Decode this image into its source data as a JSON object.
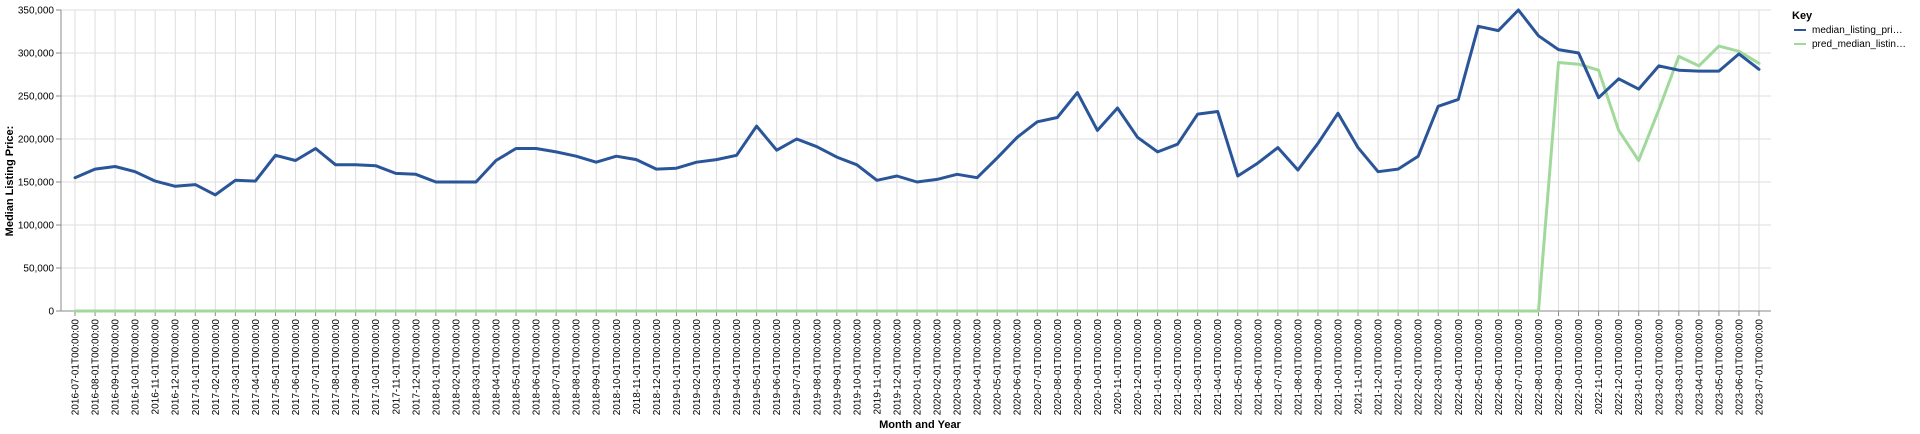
{
  "chart_data": {
    "type": "line",
    "xlabel": "Month and Year",
    "ylabel": "Median Listing Price:",
    "ylim": [
      0,
      350000
    ],
    "yticks": [
      "0",
      "50,000",
      "100,000",
      "150,000",
      "200,000",
      "250,000",
      "300,000",
      "350,000"
    ],
    "grid": true,
    "legend_placement": "right",
    "legend_title": "Key",
    "x": [
      "2016-07-01T00:00:00",
      "2016-08-01T00:00:00",
      "2016-09-01T00:00:00",
      "2016-10-01T00:00:00",
      "2016-11-01T00:00:00",
      "2016-12-01T00:00:00",
      "2017-01-01T00:00:00",
      "2017-02-01T00:00:00",
      "2017-03-01T00:00:00",
      "2017-04-01T00:00:00",
      "2017-05-01T00:00:00",
      "2017-06-01T00:00:00",
      "2017-07-01T00:00:00",
      "2017-08-01T00:00:00",
      "2017-09-01T00:00:00",
      "2017-10-01T00:00:00",
      "2017-11-01T00:00:00",
      "2017-12-01T00:00:00",
      "2018-01-01T00:00:00",
      "2018-02-01T00:00:00",
      "2018-03-01T00:00:00",
      "2018-04-01T00:00:00",
      "2018-05-01T00:00:00",
      "2018-06-01T00:00:00",
      "2018-07-01T00:00:00",
      "2018-08-01T00:00:00",
      "2018-09-01T00:00:00",
      "2018-10-01T00:00:00",
      "2018-11-01T00:00:00",
      "2018-12-01T00:00:00",
      "2019-01-01T00:00:00",
      "2019-02-01T00:00:00",
      "2019-03-01T00:00:00",
      "2019-04-01T00:00:00",
      "2019-05-01T00:00:00",
      "2019-06-01T00:00:00",
      "2019-07-01T00:00:00",
      "2019-08-01T00:00:00",
      "2019-09-01T00:00:00",
      "2019-10-01T00:00:00",
      "2019-11-01T00:00:00",
      "2019-12-01T00:00:00",
      "2020-01-01T00:00:00",
      "2020-02-01T00:00:00",
      "2020-03-01T00:00:00",
      "2020-04-01T00:00:00",
      "2020-05-01T00:00:00",
      "2020-06-01T00:00:00",
      "2020-07-01T00:00:00",
      "2020-08-01T00:00:00",
      "2020-09-01T00:00:00",
      "2020-10-01T00:00:00",
      "2020-11-01T00:00:00",
      "2020-12-01T00:00:00",
      "2021-01-01T00:00:00",
      "2021-02-01T00:00:00",
      "2021-03-01T00:00:00",
      "2021-04-01T00:00:00",
      "2021-05-01T00:00:00",
      "2021-06-01T00:00:00",
      "2021-07-01T00:00:00",
      "2021-08-01T00:00:00",
      "2021-09-01T00:00:00",
      "2021-10-01T00:00:00",
      "2021-11-01T00:00:00",
      "2021-12-01T00:00:00",
      "2022-01-01T00:00:00",
      "2022-02-01T00:00:00",
      "2022-03-01T00:00:00",
      "2022-04-01T00:00:00",
      "2022-05-01T00:00:00",
      "2022-06-01T00:00:00",
      "2022-07-01T00:00:00",
      "2022-08-01T00:00:00",
      "2022-09-01T00:00:00",
      "2022-10-01T00:00:00",
      "2022-11-01T00:00:00",
      "2022-12-01T00:00:00",
      "2023-01-01T00:00:00",
      "2023-02-01T00:00:00",
      "2023-03-01T00:00:00",
      "2023-04-01T00:00:00",
      "2023-05-01T00:00:00",
      "2023-06-01T00:00:00",
      "2023-07-01T00:00:00"
    ],
    "series": [
      {
        "name": "median_listing_pri…",
        "color": "#2a5599",
        "values": [
          155000,
          165000,
          168000,
          162000,
          151000,
          145000,
          147000,
          135000,
          152000,
          151000,
          181000,
          175000,
          189000,
          170000,
          170000,
          169000,
          160000,
          159000,
          150000,
          150000,
          150000,
          175000,
          189000,
          189000,
          185000,
          180000,
          173000,
          180000,
          176000,
          165000,
          166000,
          173000,
          176000,
          181000,
          215000,
          187000,
          200000,
          191000,
          179000,
          170000,
          152000,
          157000,
          150000,
          153000,
          159000,
          155000,
          178000,
          202000,
          220000,
          225000,
          254000,
          210000,
          236000,
          202000,
          185000,
          194000,
          229000,
          232000,
          157000,
          172000,
          190000,
          164000,
          195000,
          230000,
          190000,
          162000,
          165000,
          180000,
          238000,
          246000,
          331000,
          326000,
          350000,
          320000,
          304000,
          300000,
          248000,
          270000,
          258000,
          285000,
          280000,
          279000,
          279000,
          299000,
          281000
        ]
      },
      {
        "name": "pred_median_listin…",
        "color": "#a1d99b",
        "values": [
          0,
          0,
          0,
          0,
          0,
          0,
          0,
          0,
          0,
          0,
          0,
          0,
          0,
          0,
          0,
          0,
          0,
          0,
          0,
          0,
          0,
          0,
          0,
          0,
          0,
          0,
          0,
          0,
          0,
          0,
          0,
          0,
          0,
          0,
          0,
          0,
          0,
          0,
          0,
          0,
          0,
          0,
          0,
          0,
          0,
          0,
          0,
          0,
          0,
          0,
          0,
          0,
          0,
          0,
          0,
          0,
          0,
          0,
          0,
          0,
          0,
          0,
          0,
          0,
          0,
          0,
          0,
          0,
          0,
          0,
          0,
          0,
          0,
          0,
          289000,
          287000,
          280000,
          210000,
          175000,
          234000,
          296000,
          285000,
          308000,
          302000,
          288000
        ]
      }
    ]
  }
}
